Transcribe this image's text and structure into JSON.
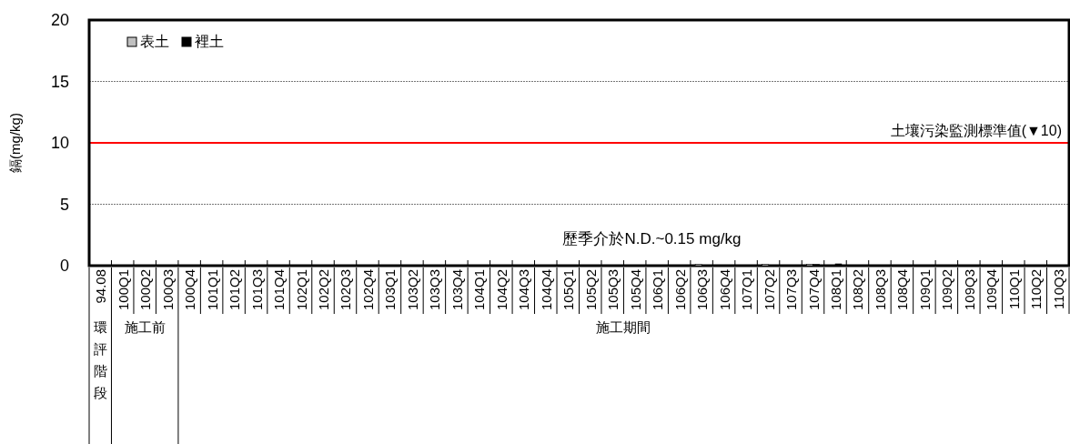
{
  "chart_data": {
    "type": "bar",
    "categories": [
      "94.08",
      "100Q1",
      "100Q2",
      "100Q3",
      "100Q4",
      "101Q1",
      "101Q2",
      "101Q3",
      "101Q4",
      "102Q1",
      "102Q2",
      "102Q3",
      "102Q4",
      "103Q1",
      "103Q2",
      "103Q3",
      "103Q4",
      "104Q1",
      "104Q2",
      "104Q3",
      "104Q4",
      "105Q1",
      "105Q2",
      "105Q3",
      "105Q4",
      "106Q1",
      "106Q2",
      "106Q3",
      "106Q4",
      "107Q1",
      "107Q2",
      "107Q3",
      "107Q4",
      "108Q1",
      "108Q2",
      "108Q3",
      "108Q4",
      "109Q1",
      "109Q2",
      "109Q3",
      "109Q4",
      "110Q1",
      "110Q2",
      "110Q3"
    ],
    "series": [
      {
        "name": "表土",
        "color": "#c0c0c0",
        "values": [
          null,
          null,
          null,
          null,
          null,
          null,
          null,
          null,
          null,
          null,
          null,
          null,
          null,
          null,
          null,
          null,
          null,
          null,
          null,
          null,
          null,
          null,
          null,
          null,
          null,
          null,
          null,
          0.1,
          null,
          null,
          0.1,
          null,
          0.1,
          null,
          null,
          null,
          null,
          null,
          null,
          null,
          null,
          null,
          null,
          null
        ]
      },
      {
        "name": "裡土",
        "color": "#000000",
        "values": [
          null,
          null,
          null,
          null,
          null,
          null,
          null,
          null,
          null,
          null,
          null,
          null,
          null,
          null,
          null,
          null,
          null,
          null,
          null,
          null,
          null,
          null,
          null,
          null,
          null,
          null,
          null,
          null,
          null,
          null,
          null,
          null,
          0.1,
          0.15,
          null,
          null,
          null,
          null,
          null,
          null,
          null,
          null,
          null,
          null
        ]
      }
    ],
    "ylabel": "鎘(mg/kg)",
    "ylim": [
      0,
      20
    ],
    "yticks": [
      0,
      5,
      10,
      15,
      20
    ],
    "grid": "y",
    "legend": "top left",
    "ref_lines": [
      {
        "axis": "y",
        "value": 10,
        "label": "土壤污染監測標準值(▼10)",
        "color": "#ff0000"
      }
    ],
    "annotations": [
      "歷季介於N.D.~0.15 mg/kg",
      "環評階段",
      "施工前",
      "施工期間"
    ]
  }
}
